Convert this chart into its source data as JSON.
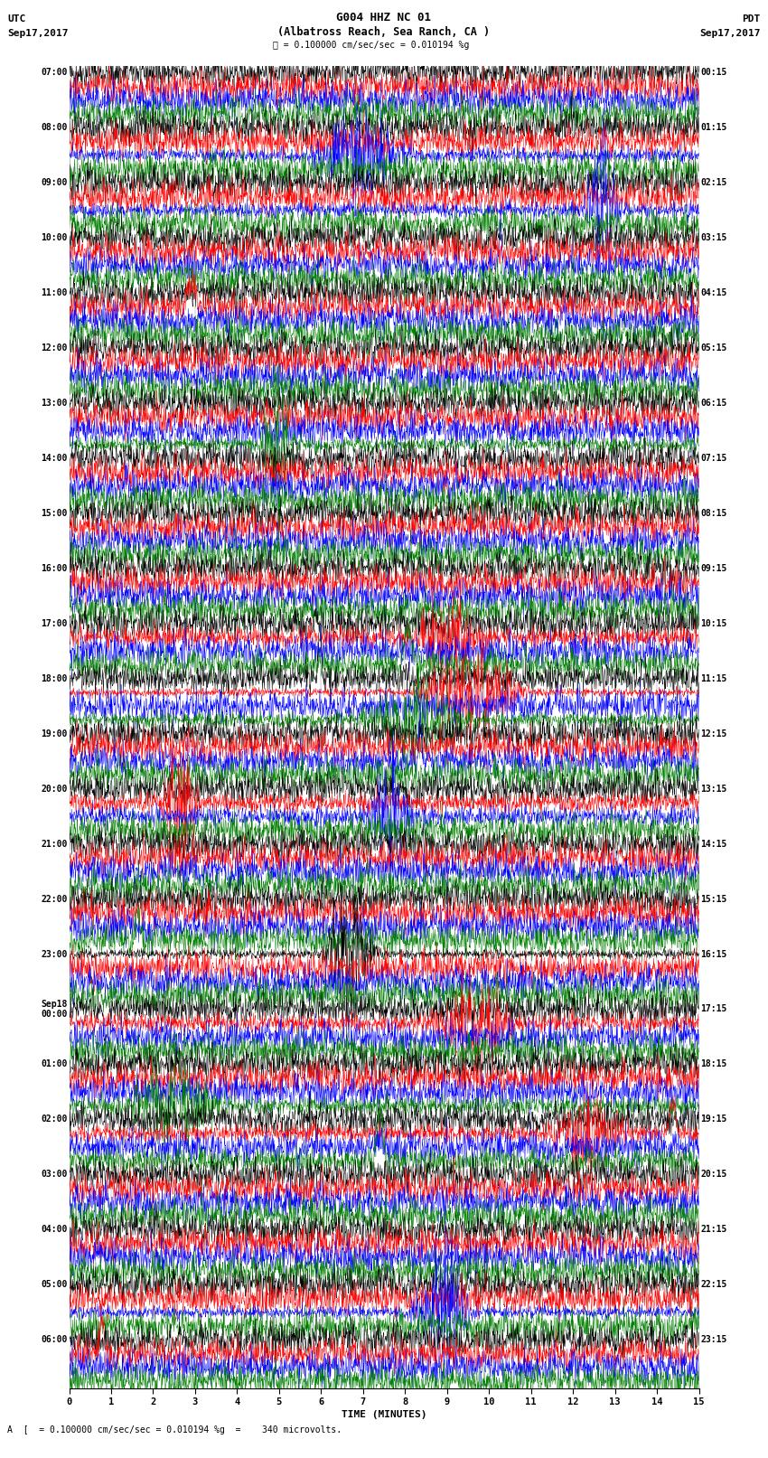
{
  "title_line1": "G004 HHZ NC 01",
  "title_line2": "(Albatross Reach, Sea Ranch, CA )",
  "scale_text": "= 0.100000 cm/sec/sec = 0.010194 %g",
  "footer_text": "A  [  = 0.100000 cm/sec/sec = 0.010194 %g  =    340 microvolts.",
  "utc_label": "UTC",
  "pdt_label": "PDT",
  "date_left": "Sep17,2017",
  "date_right": "Sep17,2017",
  "xlabel": "TIME (MINUTES)",
  "xmin": 0,
  "xmax": 15,
  "xticks": [
    0,
    1,
    2,
    3,
    4,
    5,
    6,
    7,
    8,
    9,
    10,
    11,
    12,
    13,
    14,
    15
  ],
  "colors": [
    "black",
    "red",
    "blue",
    "green"
  ],
  "fig_width": 8.5,
  "fig_height": 16.13,
  "dpi": 100,
  "left_times": [
    "07:00",
    "08:00",
    "09:00",
    "10:00",
    "11:00",
    "12:00",
    "13:00",
    "14:00",
    "15:00",
    "16:00",
    "17:00",
    "18:00",
    "19:00",
    "20:00",
    "21:00",
    "22:00",
    "23:00",
    "Sep18\n00:00",
    "01:00",
    "02:00",
    "03:00",
    "04:00",
    "05:00",
    "06:00"
  ],
  "right_times": [
    "00:15",
    "01:15",
    "02:15",
    "03:15",
    "04:15",
    "05:15",
    "06:15",
    "07:15",
    "08:15",
    "09:15",
    "10:15",
    "11:15",
    "12:15",
    "13:15",
    "14:15",
    "15:15",
    "16:15",
    "17:15",
    "18:15",
    "19:15",
    "20:15",
    "21:15",
    "22:15",
    "23:15"
  ],
  "num_hours": 24,
  "traces_per_hour": 4,
  "N_points": 1800,
  "noise_seed": 42,
  "bg_color": "white",
  "line_width": 0.35,
  "trace_amp": 0.006,
  "grid_color": "#888888",
  "grid_lw": 0.3
}
